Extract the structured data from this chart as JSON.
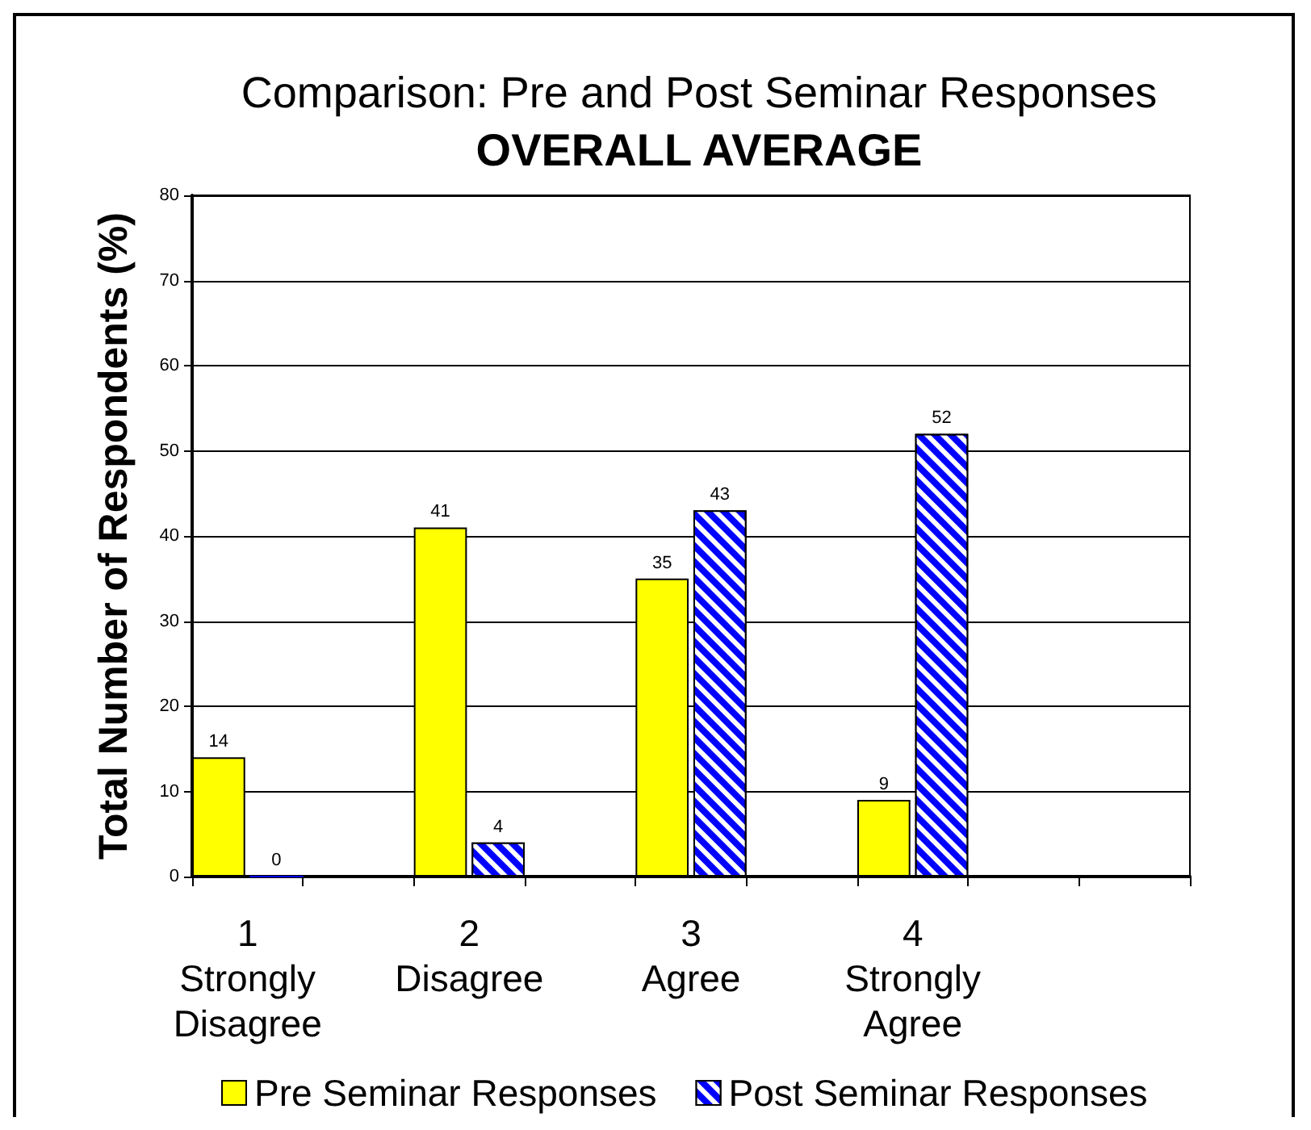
{
  "chart_data": {
    "type": "bar",
    "title": "Comparison: Pre and Post Seminar Responses",
    "subtitle": "OVERALL AVERAGE",
    "ylabel": "Total Number of Respondents (%)",
    "categories": [
      "1\nStrongly\nDisagree",
      null,
      "2\nDisagree",
      null,
      "3\nAgree",
      null,
      "4\nStrongly\nAgree",
      null,
      null
    ],
    "series": [
      {
        "name": "Pre Seminar Responses",
        "color": "#ffff00",
        "values": [
          14,
          null,
          41,
          null,
          35,
          null,
          9,
          null,
          null
        ]
      },
      {
        "name": "Post Seminar Responses",
        "color": "#0000ff",
        "values": [
          0,
          null,
          4,
          null,
          43,
          null,
          52,
          null,
          null
        ]
      }
    ],
    "ylim": [
      0,
      80
    ],
    "yticks": [
      0,
      10,
      20,
      30,
      40,
      50,
      60,
      70,
      80
    ],
    "grid": "y",
    "legend": "bottom",
    "data_labels": true
  }
}
